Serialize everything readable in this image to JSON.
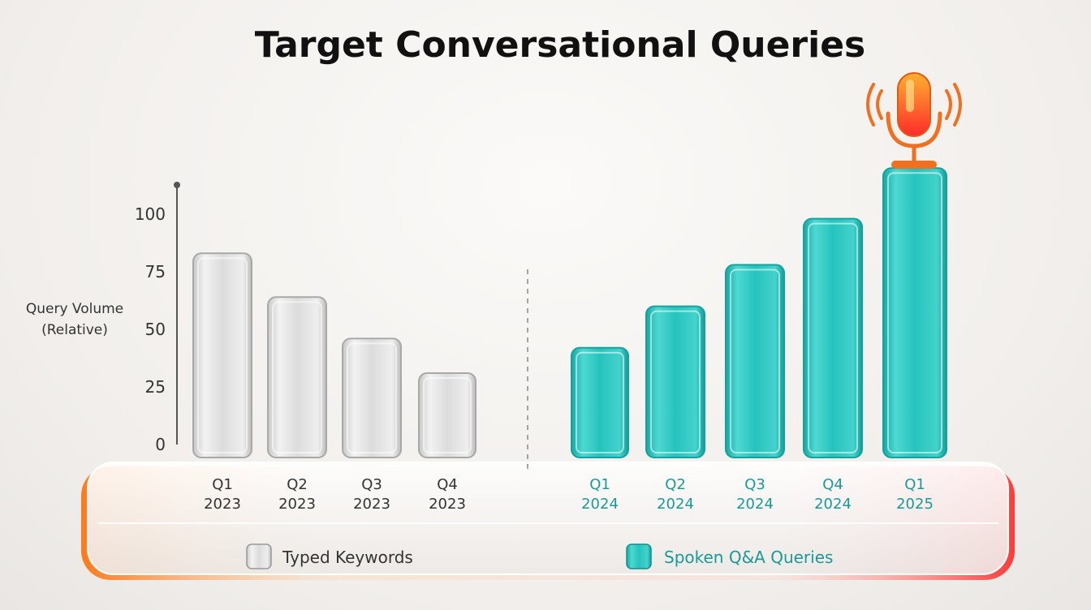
{
  "chart_data": {
    "type": "bar",
    "title": "Target Conversational Queries",
    "ylabel_line1": "Query Volume",
    "ylabel_line2": "(Relative)",
    "yticks": [
      "0",
      "25",
      "50",
      "75",
      "100"
    ],
    "ylim": [
      0,
      110
    ],
    "grid": false,
    "legend_position": "bottom",
    "series": [
      {
        "name": "Typed Keywords",
        "color": "#d7d7d7",
        "label_color": "#333333",
        "points": [
          {
            "quarter": "Q1",
            "year": "2023",
            "value": 83
          },
          {
            "quarter": "Q2",
            "year": "2023",
            "value": 64
          },
          {
            "quarter": "Q3",
            "year": "2023",
            "value": 46
          },
          {
            "quarter": "Q4",
            "year": "2023",
            "value": 31
          }
        ]
      },
      {
        "name": "Spoken Q&A Queries",
        "color": "#25c2bd",
        "label_color": "#1a9a96",
        "points": [
          {
            "quarter": "Q1",
            "year": "2024",
            "value": 42
          },
          {
            "quarter": "Q2",
            "year": "2024",
            "value": 60
          },
          {
            "quarter": "Q3",
            "year": "2024",
            "value": 78
          },
          {
            "quarter": "Q4",
            "year": "2024",
            "value": 98
          },
          {
            "quarter": "Q1",
            "year": "2025",
            "value": 120
          }
        ]
      }
    ],
    "highlight_icon": "microphone-icon",
    "platform_glow_colors": [
      "#ff7a1a",
      "#ff3b3b"
    ]
  }
}
